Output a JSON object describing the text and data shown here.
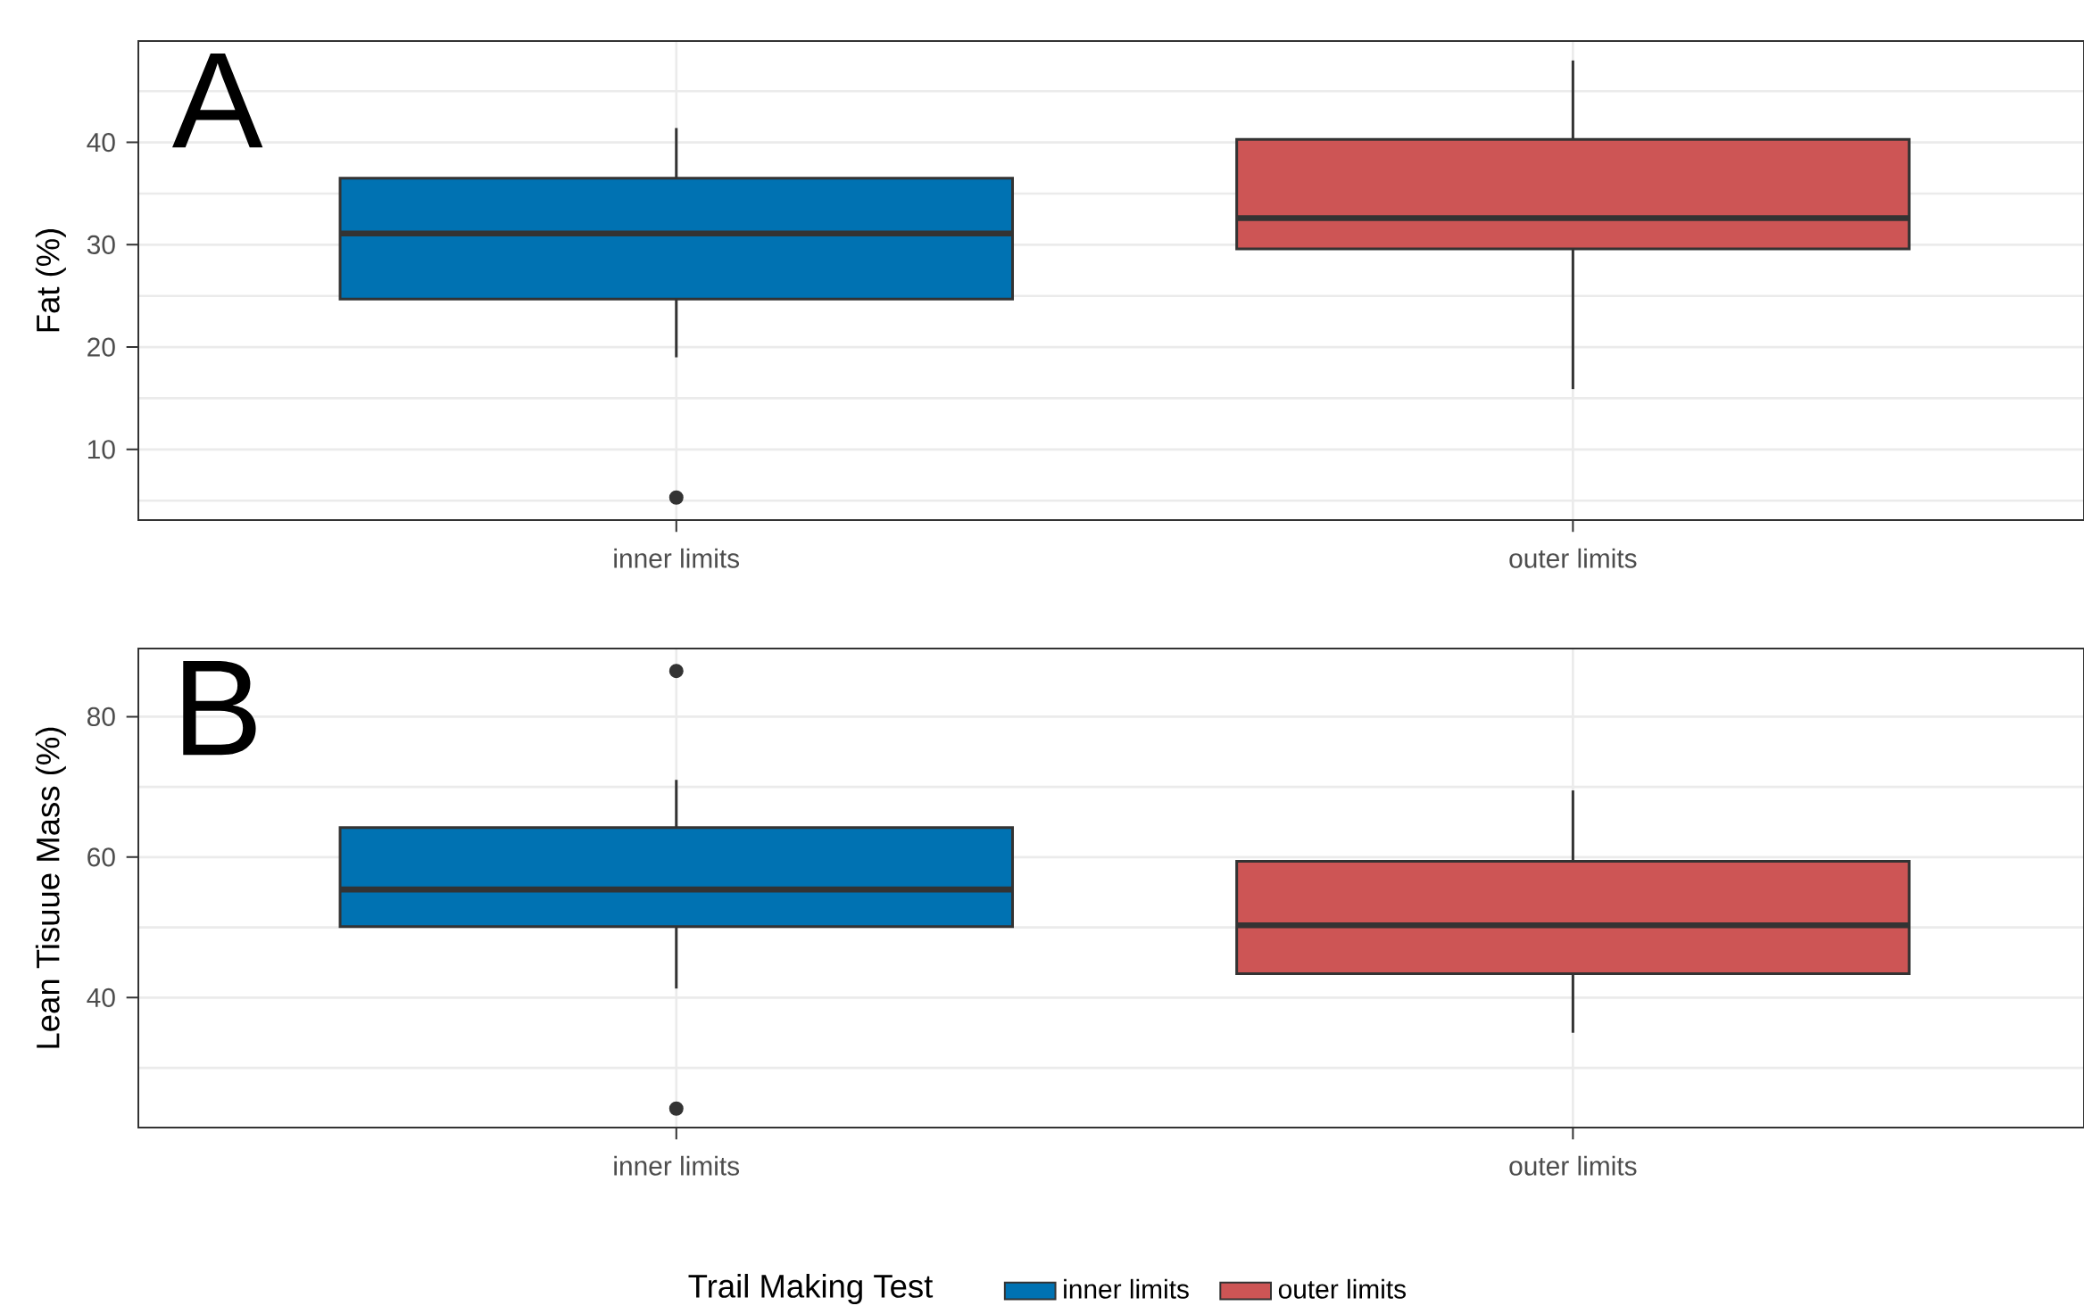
{
  "chart_data": [
    {
      "type": "box",
      "ylabel": "Fat (%)",
      "categories": [
        "inner limits",
        "outer limits"
      ],
      "series": [
        {
          "color": "#0072b2",
          "boxes": [
            {
              "low": 19.0,
              "q1": 24.7,
              "median": 31.1,
              "q3": 36.5,
              "high": 41.4,
              "outliers": [
                5.3
              ]
            },
            null
          ]
        },
        {
          "color": "#cd5555",
          "boxes": [
            null,
            {
              "low": 15.9,
              "q1": 29.6,
              "median": 32.6,
              "q3": 40.3,
              "high": 48.0
            }
          ]
        }
      ],
      "ylim": [
        3.1,
        49.9
      ],
      "yticks": [
        {
          "value": 5,
          "label": null
        },
        10,
        {
          "value": 15,
          "label": null
        },
        20,
        {
          "value": 25,
          "label": null
        },
        30,
        {
          "value": 35,
          "label": null
        },
        40,
        {
          "value": 45,
          "label": null
        }
      ],
      "grid": true,
      "annotations": [
        "A"
      ]
    },
    {
      "type": "box",
      "ylabel": "Lean Tisuue Mass (%)",
      "categories": [
        "inner limits",
        "outer limits"
      ],
      "series": [
        {
          "name": "inner limits",
          "color": "#0072b2",
          "boxes": [
            {
              "low": 41.3,
              "q1": 50.1,
              "median": 55.4,
              "q3": 64.2,
              "high": 71.0,
              "outliers": [
                86.5,
                24.2
              ]
            },
            null
          ]
        },
        {
          "name": "outer limits",
          "color": "#cd5555",
          "boxes": [
            null,
            {
              "low": 35.0,
              "q1": 43.4,
              "median": 50.3,
              "q3": 59.4,
              "high": 69.5
            }
          ]
        }
      ],
      "ylim": [
        21.5,
        89.7
      ],
      "yticks": [
        {
          "value": 30,
          "label": null
        },
        40,
        {
          "value": 50,
          "label": null
        },
        60,
        {
          "value": 70,
          "label": null
        },
        80
      ],
      "grid": true,
      "annotations": [
        "B"
      ],
      "legend": "bottom",
      "legend_title": "Trail Making Test"
    }
  ]
}
